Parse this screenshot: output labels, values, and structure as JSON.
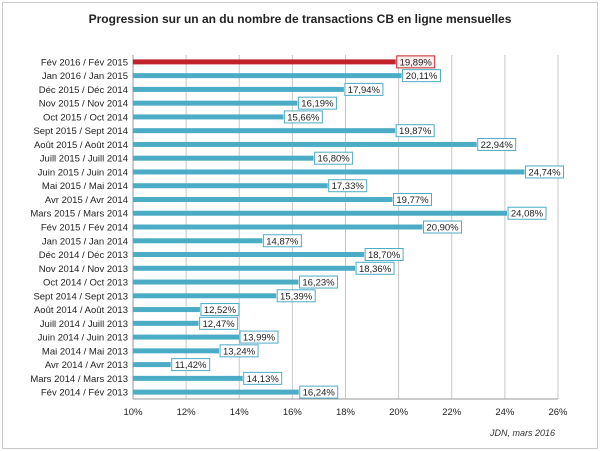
{
  "chart_data": {
    "type": "bar",
    "orientation": "horizontal",
    "title": "Progression sur un an du nombre de transactions CB en ligne mensuelles",
    "source": "JDN, mars 2016",
    "xlim": [
      10,
      26
    ],
    "x_ticks": [
      "10%",
      "12%",
      "14%",
      "16%",
      "18%",
      "20%",
      "22%",
      "24%",
      "26%"
    ],
    "grid": true,
    "colors": {
      "bar": "#4bacc6",
      "highlight": "#c0242a",
      "label_border": "#4bacc6",
      "highlight_label_border": "#c0242a",
      "grid": "#c8c8c8"
    },
    "categories": [
      "Fév 2016 / Fév 2015",
      "Jan 2016 / Jan 2015",
      "Déc 2015 / Déc 2014",
      "Nov 2015 / Nov 2014",
      "Oct 2015 / Oct 2014",
      "Sept 2015 / Sept 2014",
      "Août 2015 / Août 2014",
      "Juill 2015 / Juill 2014",
      "Juin 2015 / Juin 2014",
      "Mai 2015 / Mai 2014",
      "Avr 2015 / Avr 2014",
      "Mars 2015 / Mars 2014",
      "Fév 2015 / Fév 2014",
      "Jan 2015 / Jan 2014",
      "Déc 2014 / Déc 2013",
      "Nov 2014 / Nov 2013",
      "Oct 2014 / Oct 2013",
      "Sept 2014 / Sept 2013",
      "Août 2014 / Août 2013",
      "Juill 2014 / Juill 2013",
      "Juin 2014 / Juin 2013",
      "Mai 2014 / Mai 2013",
      "Avr 2014 / Avr 2013",
      "Mars 2014 / Mars 2013",
      "Fév 2014 / Fév 2013"
    ],
    "values": [
      19.89,
      20.11,
      17.94,
      16.19,
      15.66,
      19.87,
      22.94,
      16.8,
      24.74,
      17.33,
      19.77,
      24.08,
      20.9,
      14.87,
      18.7,
      18.36,
      16.23,
      15.39,
      12.52,
      12.47,
      13.99,
      13.24,
      11.42,
      14.13,
      16.24
    ],
    "value_labels": [
      "19,89%",
      "20,11%",
      "17,94%",
      "16,19%",
      "15,66%",
      "19,87%",
      "22,94%",
      "16,80%",
      "24,74%",
      "17,33%",
      "19,77%",
      "24,08%",
      "20,90%",
      "14,87%",
      "18,70%",
      "18,36%",
      "16,23%",
      "15,39%",
      "12,52%",
      "12,47%",
      "13,99%",
      "13,24%",
      "11,42%",
      "14,13%",
      "16,24%"
    ],
    "highlight_index": 0
  }
}
